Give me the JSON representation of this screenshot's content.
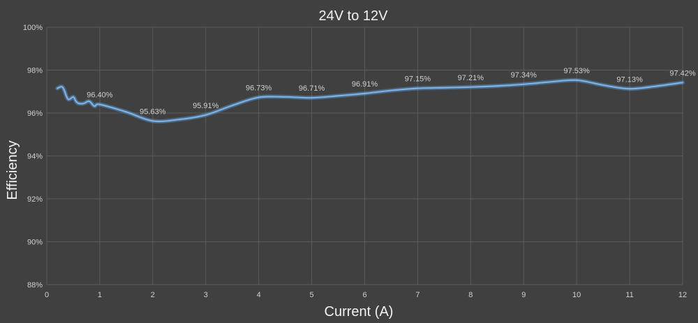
{
  "chart_data": {
    "type": "line",
    "title": "24V to 12V",
    "xlabel": "Current (A)",
    "ylabel": "Efficiency",
    "xlim": [
      0,
      12
    ],
    "ylim": [
      88,
      100
    ],
    "x_ticks": [
      0,
      1,
      2,
      3,
      4,
      5,
      6,
      7,
      8,
      9,
      10,
      11,
      12
    ],
    "y_ticks": [
      88,
      90,
      92,
      94,
      96,
      98,
      100
    ],
    "y_tick_labels": [
      "88%",
      "90%",
      "92%",
      "94%",
      "96%",
      "98%",
      "100%"
    ],
    "grid": true,
    "series": [
      {
        "color": "#7fb2e5",
        "x": [
          0.2,
          0.3,
          0.4,
          0.5,
          0.55,
          0.6,
          0.7,
          0.8,
          0.9,
          1.0,
          1.5,
          2.0,
          2.5,
          3.0,
          3.5,
          4.0,
          4.5,
          5.0,
          5.5,
          6.0,
          6.5,
          7.0,
          7.5,
          8.0,
          8.5,
          9.0,
          9.5,
          10.0,
          10.5,
          11.0,
          11.5,
          12.0
        ],
        "y": [
          97.15,
          97.2,
          96.65,
          96.75,
          96.55,
          96.45,
          96.45,
          96.55,
          96.32,
          96.4,
          96.05,
          95.63,
          95.7,
          95.91,
          96.35,
          96.73,
          96.75,
          96.71,
          96.8,
          96.91,
          97.05,
          97.15,
          97.18,
          97.21,
          97.26,
          97.34,
          97.45,
          97.53,
          97.3,
          97.13,
          97.25,
          97.42
        ]
      }
    ],
    "data_labels": [
      {
        "x": 1,
        "y": 96.4,
        "text": "96.40%"
      },
      {
        "x": 2,
        "y": 95.63,
        "text": "95.63%"
      },
      {
        "x": 3,
        "y": 95.91,
        "text": "95.91%"
      },
      {
        "x": 4,
        "y": 96.73,
        "text": "96.73%"
      },
      {
        "x": 5,
        "y": 96.71,
        "text": "96.71%"
      },
      {
        "x": 6,
        "y": 96.91,
        "text": "96.91%"
      },
      {
        "x": 7,
        "y": 97.15,
        "text": "97.15%"
      },
      {
        "x": 8,
        "y": 97.21,
        "text": "97.21%"
      },
      {
        "x": 9,
        "y": 97.34,
        "text": "97.34%"
      },
      {
        "x": 10,
        "y": 97.53,
        "text": "97.53%"
      },
      {
        "x": 11,
        "y": 97.13,
        "text": "97.13%"
      },
      {
        "x": 12,
        "y": 97.42,
        "text": "97.42%"
      }
    ]
  }
}
